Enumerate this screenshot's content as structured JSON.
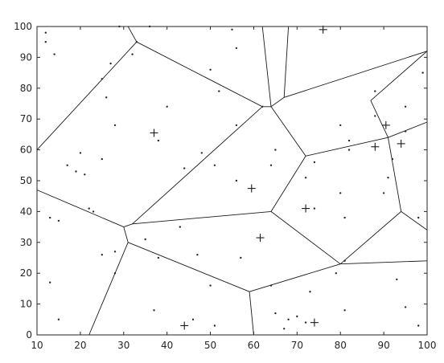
{
  "chart_data": {
    "type": "scatter",
    "title": "",
    "xlabel": "",
    "ylabel": "",
    "xlim": [
      10,
      100
    ],
    "ylim": [
      0,
      100
    ],
    "xticks": [
      "10",
      "20",
      "30",
      "40",
      "50",
      "60",
      "70",
      "80",
      "90",
      "100"
    ],
    "yticks": [
      "0",
      "10",
      "20",
      "30",
      "40",
      "50",
      "60",
      "70",
      "80",
      "90",
      "100"
    ],
    "grid": false,
    "colors": {
      "axes": "#262626",
      "marks": "#1a1a1a"
    },
    "sites": [
      {
        "x": 37,
        "y": 65.5
      },
      {
        "x": 59.5,
        "y": 47.5
      },
      {
        "x": 61.5,
        "y": 31.5
      },
      {
        "x": 72,
        "y": 41
      },
      {
        "x": 76,
        "y": 99
      },
      {
        "x": 88,
        "y": 61
      },
      {
        "x": 90.5,
        "y": 68
      },
      {
        "x": 94,
        "y": 62
      },
      {
        "x": 44,
        "y": 3
      },
      {
        "x": 74,
        "y": 4
      }
    ],
    "points": [
      {
        "x": 12,
        "y": 98
      },
      {
        "x": 12,
        "y": 95
      },
      {
        "x": 14,
        "y": 91
      },
      {
        "x": 25,
        "y": 83
      },
      {
        "x": 27,
        "y": 88
      },
      {
        "x": 26,
        "y": 77
      },
      {
        "x": 29,
        "y": 100
      },
      {
        "x": 32,
        "y": 91
      },
      {
        "x": 33,
        "y": 95
      },
      {
        "x": 36,
        "y": 100
      },
      {
        "x": 40,
        "y": 74
      },
      {
        "x": 38,
        "y": 63
      },
      {
        "x": 28,
        "y": 68
      },
      {
        "x": 20,
        "y": 59
      },
      {
        "x": 25,
        "y": 57
      },
      {
        "x": 19,
        "y": 53
      },
      {
        "x": 21,
        "y": 52
      },
      {
        "x": 17,
        "y": 55
      },
      {
        "x": 13,
        "y": 38
      },
      {
        "x": 15,
        "y": 37
      },
      {
        "x": 22,
        "y": 41
      },
      {
        "x": 23,
        "y": 40
      },
      {
        "x": 13,
        "y": 17
      },
      {
        "x": 15,
        "y": 5
      },
      {
        "x": 25,
        "y": 26
      },
      {
        "x": 28,
        "y": 27
      },
      {
        "x": 28,
        "y": 20
      },
      {
        "x": 35,
        "y": 31
      },
      {
        "x": 38,
        "y": 25
      },
      {
        "x": 43,
        "y": 35
      },
      {
        "x": 47,
        "y": 26
      },
      {
        "x": 50,
        "y": 16
      },
      {
        "x": 37,
        "y": 8
      },
      {
        "x": 46,
        "y": 5
      },
      {
        "x": 51,
        "y": 3
      },
      {
        "x": 50,
        "y": 86
      },
      {
        "x": 52,
        "y": 79
      },
      {
        "x": 56,
        "y": 93
      },
      {
        "x": 55,
        "y": 99
      },
      {
        "x": 62,
        "y": 74
      },
      {
        "x": 56,
        "y": 68
      },
      {
        "x": 48,
        "y": 59
      },
      {
        "x": 51,
        "y": 55
      },
      {
        "x": 44,
        "y": 54
      },
      {
        "x": 57,
        "y": 25
      },
      {
        "x": 56,
        "y": 50
      },
      {
        "x": 64,
        "y": 55
      },
      {
        "x": 65,
        "y": 60
      },
      {
        "x": 64,
        "y": 16
      },
      {
        "x": 65,
        "y": 7
      },
      {
        "x": 68,
        "y": 5
      },
      {
        "x": 70,
        "y": 6
      },
      {
        "x": 67,
        "y": 2
      },
      {
        "x": 72,
        "y": 4
      },
      {
        "x": 73,
        "y": 14
      },
      {
        "x": 72,
        "y": 51
      },
      {
        "x": 74,
        "y": 41
      },
      {
        "x": 74,
        "y": 56
      },
      {
        "x": 80,
        "y": 68
      },
      {
        "x": 79,
        "y": 20
      },
      {
        "x": 81,
        "y": 24
      },
      {
        "x": 81,
        "y": 8
      },
      {
        "x": 81,
        "y": 38
      },
      {
        "x": 80,
        "y": 46
      },
      {
        "x": 82,
        "y": 60
      },
      {
        "x": 82,
        "y": 63
      },
      {
        "x": 88,
        "y": 71
      },
      {
        "x": 88,
        "y": 79
      },
      {
        "x": 90,
        "y": 46
      },
      {
        "x": 92,
        "y": 57
      },
      {
        "x": 91,
        "y": 51
      },
      {
        "x": 93,
        "y": 18
      },
      {
        "x": 95,
        "y": 9
      },
      {
        "x": 95,
        "y": 74
      },
      {
        "x": 99,
        "y": 85
      },
      {
        "x": 98,
        "y": 3
      },
      {
        "x": 98,
        "y": 38
      },
      {
        "x": 95,
        "y": 66
      }
    ],
    "edges": [
      [
        [
          10,
          60
        ],
        [
          33,
          95
        ]
      ],
      [
        [
          33,
          95
        ],
        [
          31,
          100
        ]
      ],
      [
        [
          33,
          95
        ],
        [
          62,
          74
        ]
      ],
      [
        [
          62,
          74
        ],
        [
          64,
          74
        ]
      ],
      [
        [
          64,
          74
        ],
        [
          62,
          100
        ]
      ],
      [
        [
          64,
          74
        ],
        [
          67,
          77
        ]
      ],
      [
        [
          67,
          77
        ],
        [
          68,
          100
        ]
      ],
      [
        [
          67,
          77
        ],
        [
          100,
          92
        ]
      ],
      [
        [
          64,
          74
        ],
        [
          72,
          58
        ]
      ],
      [
        [
          72,
          58
        ],
        [
          91,
          64
        ]
      ],
      [
        [
          91,
          64
        ],
        [
          94,
          40
        ]
      ],
      [
        [
          91,
          64
        ],
        [
          100,
          69
        ]
      ],
      [
        [
          91,
          64
        ],
        [
          87,
          76
        ]
      ],
      [
        [
          87,
          76
        ],
        [
          100,
          92
        ]
      ],
      [
        [
          72,
          58
        ],
        [
          64,
          40
        ]
      ],
      [
        [
          64,
          40
        ],
        [
          80,
          23
        ]
      ],
      [
        [
          80,
          23
        ],
        [
          94,
          40
        ]
      ],
      [
        [
          94,
          40
        ],
        [
          100,
          34
        ]
      ],
      [
        [
          80,
          23
        ],
        [
          100,
          24
        ]
      ],
      [
        [
          80,
          23
        ],
        [
          59,
          14
        ]
      ],
      [
        [
          59,
          14
        ],
        [
          60,
          0
        ]
      ],
      [
        [
          59,
          14
        ],
        [
          31,
          30
        ]
      ],
      [
        [
          31,
          30
        ],
        [
          22,
          0
        ]
      ],
      [
        [
          31,
          30
        ],
        [
          30,
          35
        ]
      ],
      [
        [
          30,
          35
        ],
        [
          10,
          47
        ]
      ],
      [
        [
          30,
          35
        ],
        [
          32,
          36
        ]
      ],
      [
        [
          32,
          36
        ],
        [
          62,
          74
        ]
      ],
      [
        [
          32,
          36
        ],
        [
          64,
          40
        ]
      ]
    ]
  }
}
